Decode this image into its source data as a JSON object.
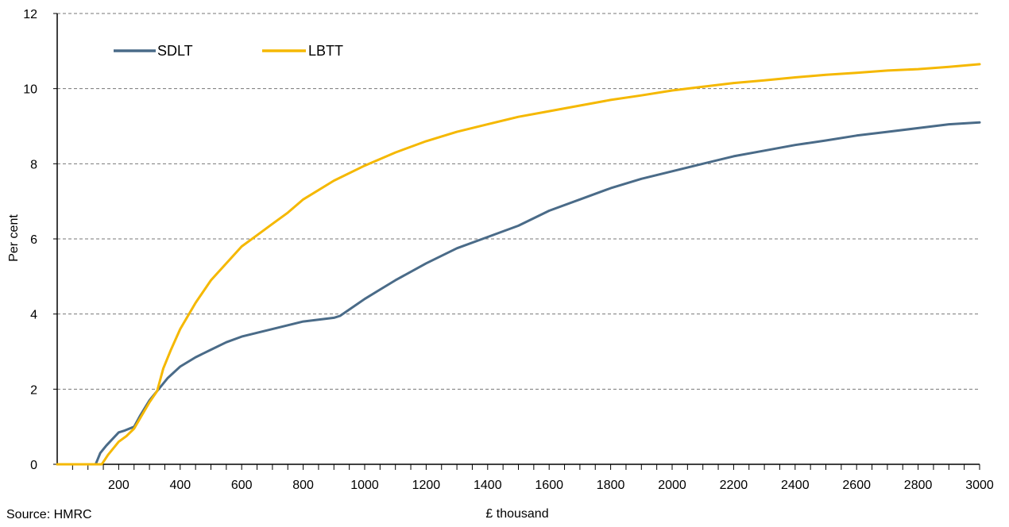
{
  "chart_data": {
    "type": "line",
    "xlabel": "£ thousand",
    "ylabel": "Per cent",
    "xlim": [
      0,
      3000
    ],
    "ylim": [
      0,
      12
    ],
    "x_tick_labels": [
      "200",
      "400",
      "600",
      "800",
      "1000",
      "1200",
      "1400",
      "1600",
      "1800",
      "2000",
      "2200",
      "2400",
      "2600",
      "2800",
      "3000"
    ],
    "y_tick_labels": [
      "0",
      "2",
      "4",
      "6",
      "8",
      "10",
      "12"
    ],
    "grid": "horizontal dashed",
    "legend_position": "top-left",
    "series": [
      {
        "name": "SDLT",
        "color": "#4a6b88",
        "x": [
          0,
          125,
          140,
          160,
          200,
          220,
          250,
          270,
          300,
          330,
          360,
          400,
          450,
          500,
          550,
          600,
          700,
          800,
          900,
          920,
          1000,
          1050,
          1100,
          1200,
          1300,
          1400,
          1500,
          1600,
          1700,
          1800,
          1900,
          2000,
          2100,
          2200,
          2300,
          2400,
          2500,
          2600,
          2700,
          2800,
          2900,
          3000
        ],
        "y": [
          0,
          0,
          0.3,
          0.5,
          0.85,
          0.9,
          1.0,
          1.3,
          1.7,
          2.0,
          2.3,
          2.6,
          2.85,
          3.05,
          3.25,
          3.4,
          3.6,
          3.8,
          3.9,
          3.95,
          4.4,
          4.65,
          4.9,
          5.35,
          5.75,
          6.05,
          6.35,
          6.75,
          7.05,
          7.35,
          7.6,
          7.8,
          8.0,
          8.2,
          8.35,
          8.5,
          8.62,
          8.75,
          8.85,
          8.95,
          9.05,
          9.1
        ]
      },
      {
        "name": "LBTT",
        "color": "#f5b800",
        "x": [
          0,
          145,
          165,
          200,
          225,
          250,
          275,
          300,
          325,
          345,
          370,
          400,
          450,
          500,
          550,
          600,
          650,
          700,
          750,
          800,
          900,
          1000,
          1100,
          1200,
          1300,
          1400,
          1500,
          1600,
          1700,
          1800,
          1900,
          2000,
          2100,
          2200,
          2300,
          2400,
          2500,
          2600,
          2700,
          2800,
          2900,
          3000
        ],
        "y": [
          0,
          0,
          0.25,
          0.6,
          0.75,
          0.95,
          1.3,
          1.65,
          1.95,
          2.55,
          3.05,
          3.6,
          4.3,
          4.9,
          5.35,
          5.8,
          6.1,
          6.4,
          6.7,
          7.05,
          7.55,
          7.95,
          8.3,
          8.6,
          8.85,
          9.05,
          9.25,
          9.4,
          9.55,
          9.7,
          9.82,
          9.95,
          10.05,
          10.15,
          10.22,
          10.3,
          10.37,
          10.42,
          10.48,
          10.52,
          10.58,
          10.65
        ]
      }
    ]
  },
  "source_note": "Source: HMRC"
}
